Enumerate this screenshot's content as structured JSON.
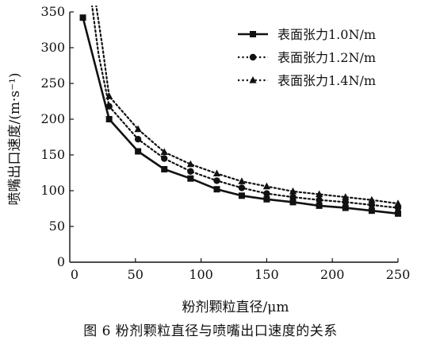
{
  "chart_data": {
    "type": "line",
    "xlabel": "粉剂颗粒直径/μm",
    "ylabel": "喷嘴出口速度/(m·s⁻¹)",
    "xlim": [
      0,
      250
    ],
    "ylim": [
      0,
      350
    ],
    "xticks": [
      0,
      50,
      100,
      150,
      200,
      250
    ],
    "yticks": [
      0,
      50,
      100,
      150,
      200,
      250,
      300,
      350
    ],
    "legend_position": "top-right",
    "grid": false,
    "series": [
      {
        "name": "表面张力1.0N/m",
        "line": "solid",
        "marker": "square",
        "x": [
          10,
          30,
          52,
          72,
          92,
          112,
          131,
          150,
          170,
          190,
          210,
          230,
          250
        ],
        "y": [
          342,
          200,
          155,
          130,
          117,
          102,
          93,
          88,
          84,
          79,
          76,
          72,
          68
        ]
      },
      {
        "name": "表面张力1.2N/m",
        "line": "dotted",
        "marker": "circle",
        "x": [
          30,
          52,
          72,
          92,
          112,
          131,
          150,
          170,
          190,
          210,
          230,
          250
        ],
        "y": [
          218,
          172,
          145,
          127,
          114,
          104,
          96,
          91,
          87,
          84,
          80,
          76
        ]
      },
      {
        "name": "表面张力1.4N/m",
        "line": "dotted",
        "marker": "triangle",
        "x": [
          30,
          52,
          72,
          92,
          112,
          131,
          150,
          170,
          190,
          210,
          230,
          250
        ],
        "y": [
          232,
          186,
          154,
          137,
          124,
          113,
          106,
          99,
          95,
          91,
          87,
          82
        ]
      }
    ]
  },
  "caption": "图 6  粉剂颗粒直径与喷嘴出口速度的关系"
}
